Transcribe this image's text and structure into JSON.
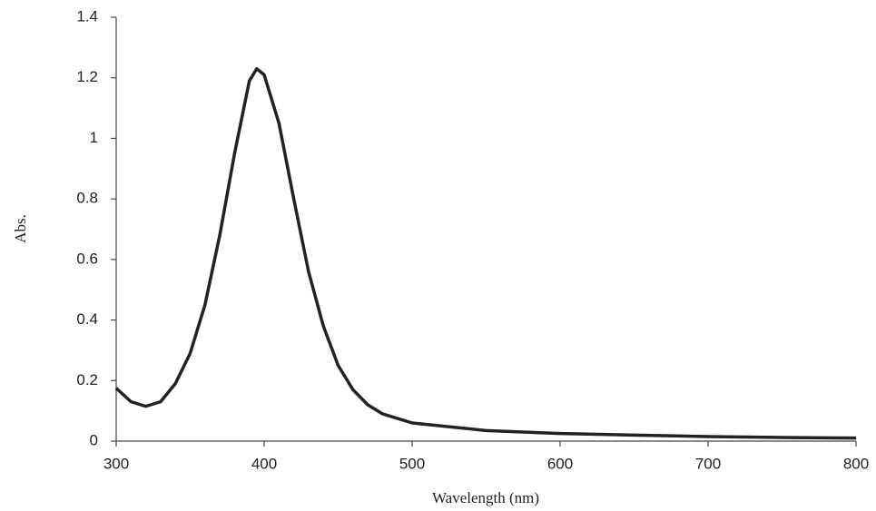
{
  "chart_data": {
    "type": "line",
    "x_label": "Wavelength (nm)",
    "y_label": "Abs.",
    "x": [
      300,
      310,
      320,
      330,
      340,
      350,
      360,
      370,
      380,
      390,
      395,
      400,
      410,
      420,
      430,
      440,
      450,
      460,
      470,
      480,
      500,
      550,
      600,
      650,
      700,
      750,
      800
    ],
    "series": [
      {
        "color": "#222222",
        "values": [
          0.175,
          0.13,
          0.115,
          0.13,
          0.19,
          0.29,
          0.45,
          0.68,
          0.95,
          1.19,
          1.23,
          1.21,
          1.05,
          0.8,
          0.56,
          0.38,
          0.25,
          0.17,
          0.12,
          0.09,
          0.06,
          0.035,
          0.025,
          0.02,
          0.015,
          0.012,
          0.01
        ]
      }
    ],
    "xlim": [
      300,
      800
    ],
    "xticks": [
      300,
      400,
      500,
      600,
      700,
      800
    ],
    "ylim": [
      0,
      1.4
    ],
    "yticks": [
      0,
      0.2,
      0.4,
      0.6,
      0.8,
      1,
      1.2,
      1.4
    ]
  }
}
